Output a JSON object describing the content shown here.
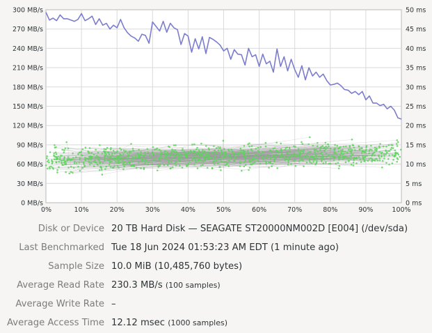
{
  "chart_data": {
    "type": "line",
    "x_axis": {
      "min": 0,
      "max": 100,
      "unit": "%",
      "ticks": [
        "0%",
        "10%",
        "20%",
        "30%",
        "40%",
        "50%",
        "60%",
        "70%",
        "80%",
        "90%",
        "100%"
      ]
    },
    "y_left": {
      "min": 0,
      "max": 300,
      "unit": "MB/s",
      "ticks": [
        "0 MB/s",
        "30 MB/s",
        "60 MB/s",
        "90 MB/s",
        "120 MB/s",
        "150 MB/s",
        "180 MB/s",
        "210 MB/s",
        "240 MB/s",
        "270 MB/s",
        "300 MB/s"
      ]
    },
    "y_right": {
      "min": 0,
      "max": 50,
      "unit": "ms",
      "ticks": [
        "0 ms",
        "5 ms",
        "10 ms",
        "15 ms",
        "20 ms",
        "25 ms",
        "30 ms",
        "35 ms",
        "40 ms",
        "45 ms",
        "50 ms"
      ]
    },
    "grid": true,
    "series": [
      {
        "kind": "read_rate_line",
        "color": "#7c7ccf",
        "axis": "left",
        "x": [
          0,
          1,
          2,
          3,
          4,
          5,
          6,
          7,
          8,
          9,
          10,
          11,
          12,
          13,
          14,
          15,
          16,
          17,
          18,
          19,
          20,
          21,
          22,
          23,
          24,
          25,
          26,
          27,
          28,
          29,
          30,
          31,
          32,
          33,
          34,
          35,
          36,
          37,
          38,
          39,
          40,
          41,
          42,
          43,
          44,
          45,
          46,
          47,
          48,
          49,
          50,
          51,
          52,
          53,
          54,
          55,
          56,
          57,
          58,
          59,
          60,
          61,
          62,
          63,
          64,
          65,
          66,
          67,
          68,
          69,
          70,
          71,
          72,
          73,
          74,
          75,
          76,
          77,
          78,
          79,
          80,
          81,
          82,
          83,
          84,
          85,
          86,
          87,
          88,
          89,
          90,
          91,
          92,
          93,
          94,
          95,
          96,
          97,
          98,
          99,
          100
        ],
        "y": [
          296,
          284,
          287,
          283,
          292,
          286,
          286,
          284,
          282,
          285,
          294,
          283,
          286,
          290,
          277,
          286,
          276,
          279,
          270,
          276,
          272,
          285,
          272,
          264,
          259,
          256,
          251,
          262,
          260,
          248,
          281,
          274,
          267,
          282,
          265,
          279,
          272,
          269,
          246,
          263,
          259,
          234,
          255,
          239,
          258,
          232,
          257,
          254,
          250,
          245,
          236,
          240,
          223,
          238,
          231,
          230,
          214,
          240,
          227,
          230,
          212,
          231,
          216,
          220,
          203,
          239,
          212,
          227,
          205,
          223,
          207,
          195,
          213,
          191,
          210,
          197,
          203,
          195,
          200,
          190,
          183,
          184,
          186,
          182,
          176,
          175,
          170,
          173,
          168,
          173,
          160,
          166,
          155,
          155,
          151,
          153,
          146,
          150,
          144,
          132,
          130
        ],
        "units": "MB/s"
      },
      {
        "kind": "access_time_scatter",
        "color": "#5fd35f",
        "axis": "right",
        "units": "ms",
        "samples": 1000,
        "range_ms": [
          3,
          22
        ]
      }
    ]
  },
  "info": {
    "rows": [
      {
        "label": "Disk or Device",
        "value": "20 TB Hard Disk — SEAGATE ST20000NM002D [E004] (/dev/sda)",
        "extra": ""
      },
      {
        "label": "Last Benchmarked",
        "value": "Tue 18 Jun 2024 01:53:23 AM EDT (1 minute ago)",
        "extra": ""
      },
      {
        "label": "Sample Size",
        "value": "10.0 MiB (10,485,760 bytes)",
        "extra": ""
      },
      {
        "label": "Average Read Rate",
        "value": "230.3 MB/s",
        "extra": "(100 samples)"
      },
      {
        "label": "Average Write Rate",
        "value": "–",
        "extra": ""
      },
      {
        "label": "Average Access Time",
        "value": "12.12 msec",
        "extra": "(1000 samples)"
      }
    ]
  }
}
